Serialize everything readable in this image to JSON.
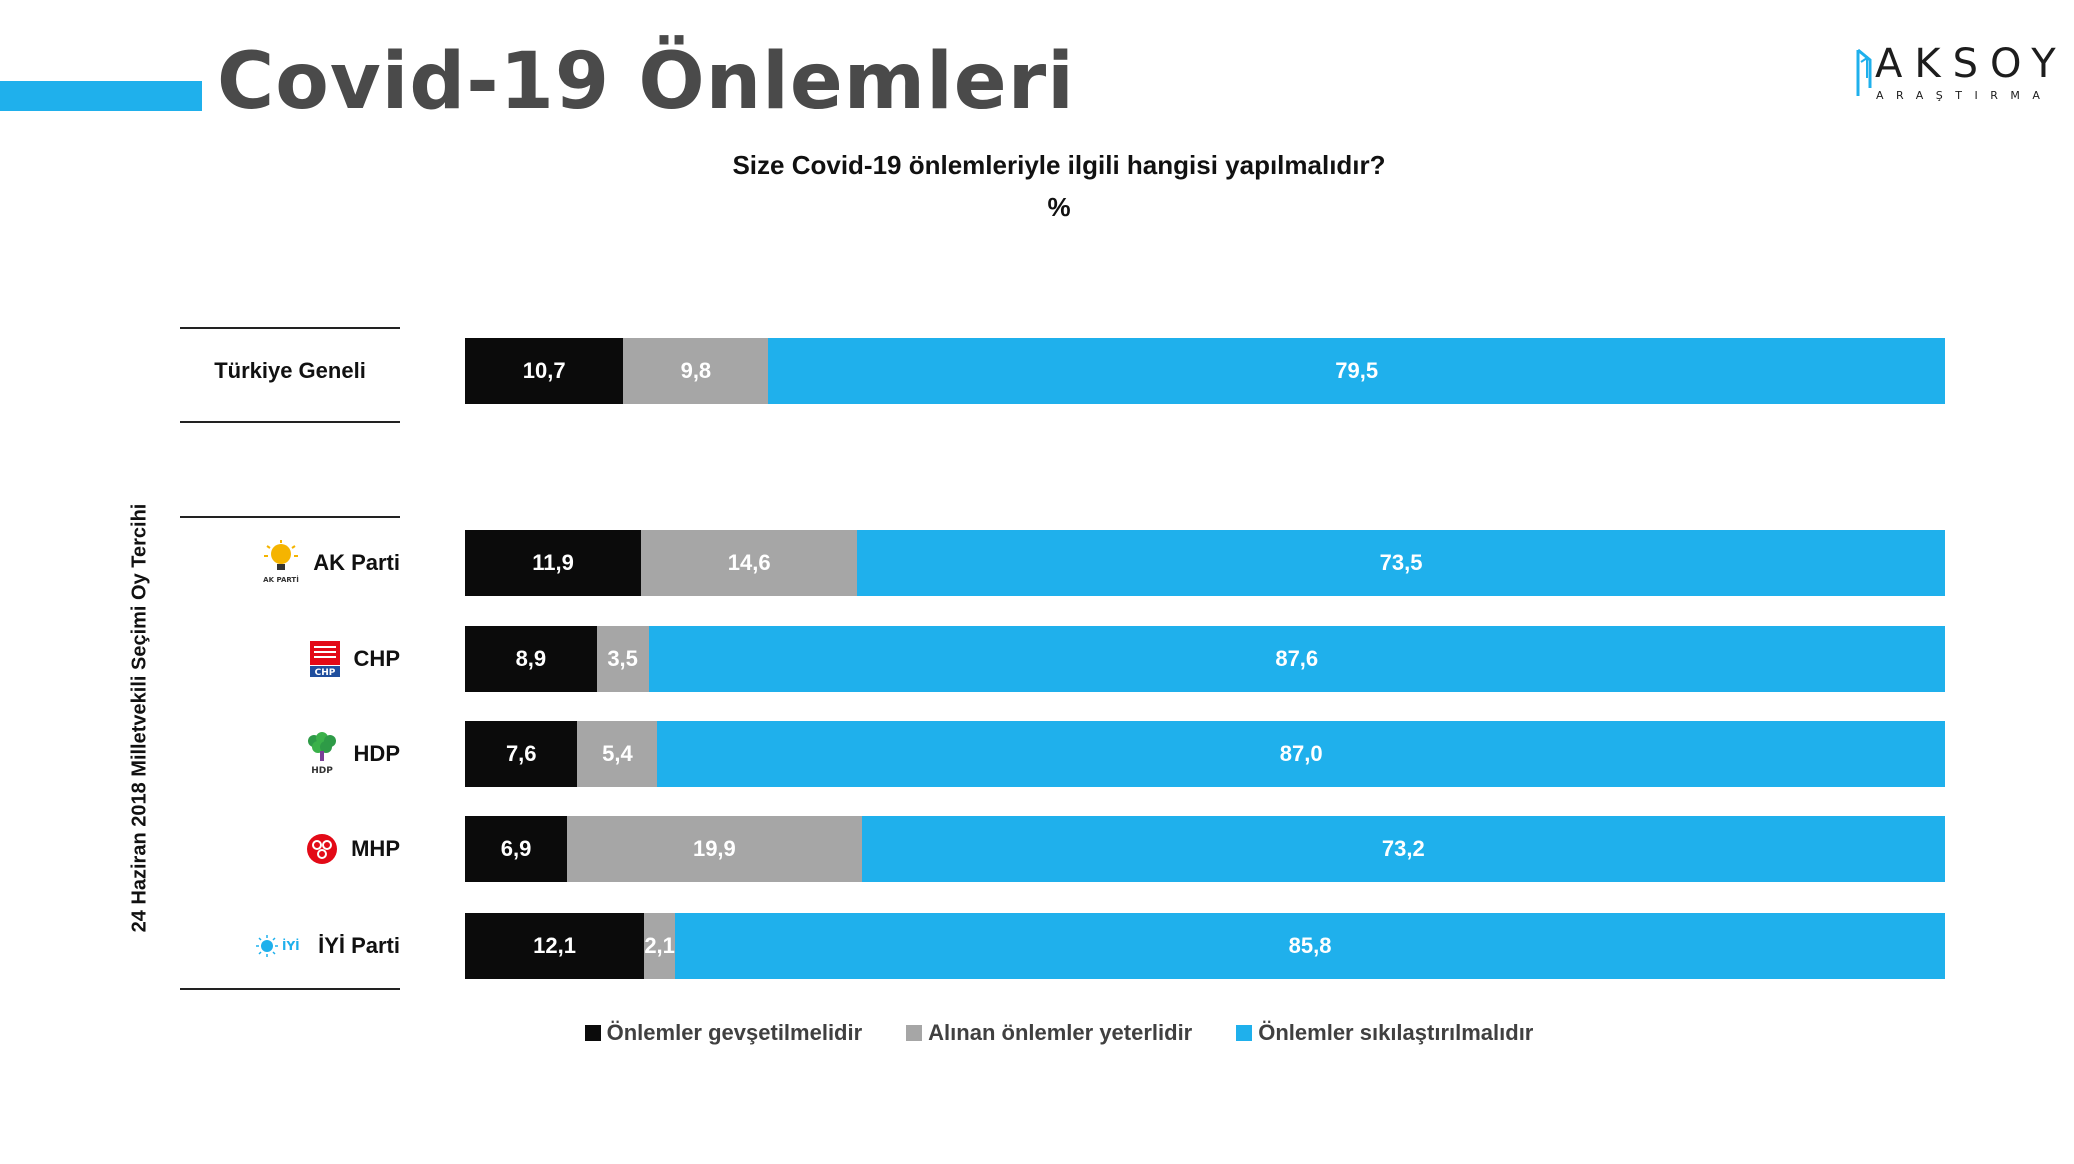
{
  "header": {
    "title": "Covid-19 Önlemleri",
    "brand_name": "AKSOY",
    "brand_sub": "ARAŞTIRMA",
    "accent_color": "#1fb0ec"
  },
  "chart_data": {
    "type": "bar",
    "orientation": "horizontal",
    "stacked": true,
    "title": "Size Covid-19 önlemleriyle ilgili hangisi yapılmalıdır?",
    "subtitle": "%",
    "group_label": "24 Haziran 2018 Milletvekili Seçimi Oy Tercihi",
    "categories": [
      "Türkiye Geneli",
      "AK Parti",
      "CHP",
      "HDP",
      "MHP",
      "İYİ Parti"
    ],
    "category_logos": [
      "",
      "akparti-logo",
      "chp-logo",
      "hdp-logo",
      "mhp-logo",
      "iyi-logo"
    ],
    "series": [
      {
        "name": "Önlemler gevşetilmelidir",
        "color": "#0b0b0b",
        "values": [
          10.7,
          11.9,
          8.9,
          7.6,
          6.9,
          12.1
        ],
        "labels": [
          "10,7",
          "11,9",
          "8,9",
          "7,6",
          "6,9",
          "12,1"
        ]
      },
      {
        "name": "Alınan önlemler yeterlidir",
        "color": "#a6a6a6",
        "values": [
          9.8,
          14.6,
          3.5,
          5.4,
          19.9,
          2.1
        ],
        "labels": [
          "9,8",
          "14,6",
          "3,5",
          "5,4",
          "19,9",
          "2,1"
        ]
      },
      {
        "name": "Önlemler sıkılaştırılmalıdır",
        "color": "#1fb0ec",
        "values": [
          79.5,
          73.5,
          87.6,
          87.0,
          73.2,
          85.8
        ],
        "labels": [
          "79,5",
          "73,5",
          "87,6",
          "87,0",
          "73,2",
          "85,8"
        ]
      }
    ],
    "xlim": [
      0,
      100
    ],
    "legend_position": "bottom"
  }
}
